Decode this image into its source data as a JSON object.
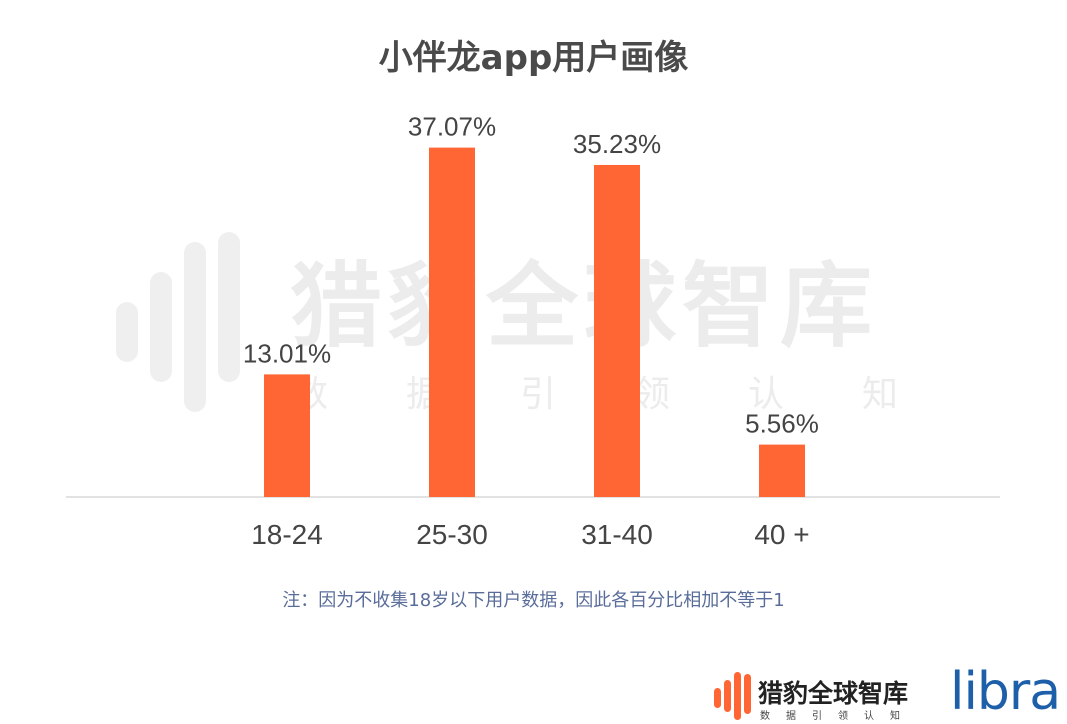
{
  "title": "小伴龙app用户画像",
  "chart_data": {
    "type": "bar",
    "title": "小伴龙app用户画像",
    "categories": [
      "18-24",
      "25-30",
      "31-40",
      "40 +"
    ],
    "values": [
      13.01,
      37.07,
      35.23,
      5.56
    ],
    "value_labels": [
      "13.01%",
      "37.07%",
      "35.23%",
      "5.56%"
    ],
    "unit": "%",
    "ylim": [
      0,
      40
    ],
    "grid": false,
    "legend": "none",
    "bar_color": "#ff6633"
  },
  "footnote": "注：因为不收集18岁以下用户数据，因此各百分比相加不等于1",
  "watermark": {
    "name": "猎豹全球智库",
    "tagline": "数据引领认知"
  },
  "brand": {
    "name": "猎豹全球智库",
    "tagline": "数据引领认知",
    "partner": "libra",
    "accent_color": "#ff6633",
    "partner_color": "#1d5fa8"
  }
}
